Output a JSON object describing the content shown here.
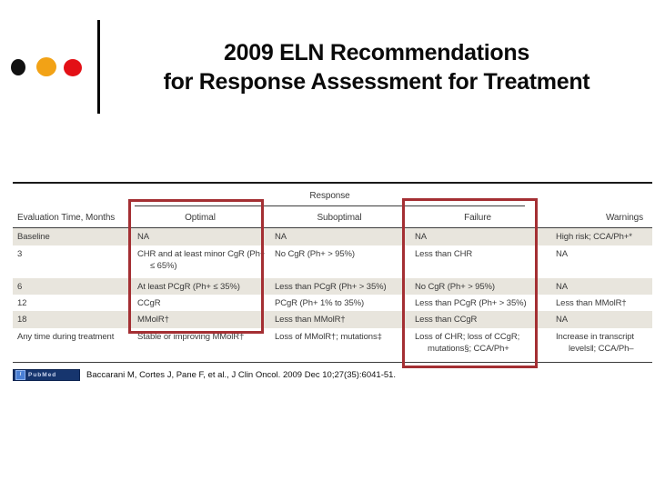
{
  "slide": {
    "title_line1": "2009 ELN Recommendations",
    "title_line2": "for Response Assessment for Treatment"
  },
  "decoration": {
    "dot_colors": [
      "#111111",
      "#f2a216",
      "#e31016"
    ],
    "highlight_color": "#a42f33"
  },
  "table": {
    "spanner": "Response",
    "headers": [
      "Evaluation Time, Months",
      "Optimal",
      "Suboptimal",
      "Failure",
      "Warnings"
    ],
    "shaded_row_color": "#e8e5dd",
    "rows": [
      {
        "shaded": true,
        "cells": [
          "Baseline",
          "NA",
          "NA",
          "NA",
          "High risk; CCA/Ph+*"
        ]
      },
      {
        "shaded": false,
        "cells": [
          "3",
          "CHR and at least minor CgR (Ph+ ≤ 65%)",
          "No CgR (Ph+ > 95%)",
          "Less than CHR",
          "NA"
        ]
      },
      {
        "shaded": true,
        "cells": [
          "6",
          "At least PCgR (Ph+ ≤ 35%)",
          "Less than PCgR (Ph+ > 35%)",
          "No CgR (Ph+ > 95%)",
          "NA"
        ]
      },
      {
        "shaded": false,
        "cells": [
          "12",
          "CCgR",
          "PCgR (Ph+ 1% to 35%)",
          "Less than PCgR (Ph+ > 35%)",
          "Less than MMolR†"
        ]
      },
      {
        "shaded": true,
        "cells": [
          "18",
          "MMolR†",
          "Less than MMolR†",
          "Less than CCgR",
          "NA"
        ]
      },
      {
        "shaded": false,
        "cells": [
          "Any time during treatment",
          "Stable or improving MMolR†",
          "Loss of MMolR†; mutations‡",
          "Loss of CHR; loss of CCgR; mutations§; CCA/Ph+",
          "Increase in transcript levels‖; CCA/Ph–"
        ]
      }
    ],
    "highlighted_columns": [
      "Optimal",
      "Failure"
    ]
  },
  "citation": {
    "badge_label": "PubMed",
    "text": "Baccarani M, Cortes J, Pane F, et al.,  J Clin Oncol. 2009 Dec 10;27(35):6041-51."
  }
}
